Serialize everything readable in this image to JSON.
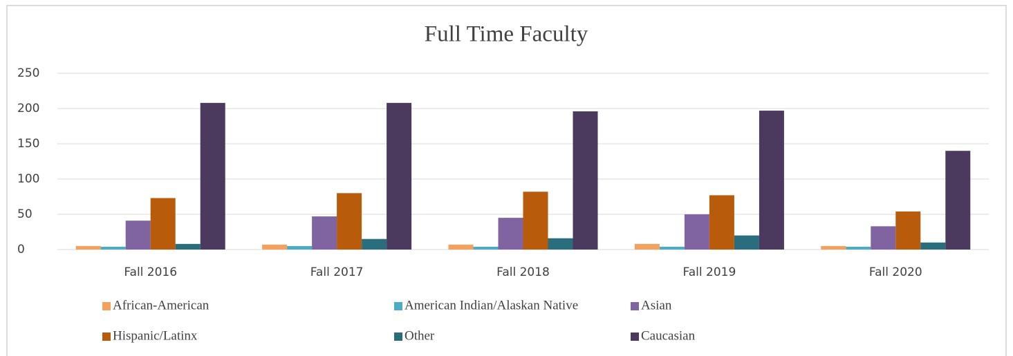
{
  "chart_data": {
    "type": "bar",
    "title": "Full Time Faculty",
    "categories": [
      "Fall 2016",
      "Fall 2017",
      "Fall 2018",
      "Fall 2019",
      "Fall 2020"
    ],
    "series": [
      {
        "name": "African-American",
        "color": "#f4a15d",
        "values": [
          5,
          7,
          7,
          8,
          5
        ]
      },
      {
        "name": "American Indian/Alaskan Native",
        "color": "#4bacc6",
        "values": [
          4,
          5,
          4,
          4,
          4
        ]
      },
      {
        "name": "Asian",
        "color": "#8064a2",
        "values": [
          41,
          47,
          45,
          50,
          33
        ]
      },
      {
        "name": "Hispanic/Latinx",
        "color": "#b85b0a",
        "values": [
          73,
          80,
          82,
          77,
          54
        ]
      },
      {
        "name": "Other",
        "color": "#2a6d7c",
        "values": [
          8,
          15,
          16,
          20,
          10
        ]
      },
      {
        "name": "Caucasian",
        "color": "#4b3a5e",
        "values": [
          208,
          208,
          196,
          197,
          140
        ]
      }
    ],
    "ylim": [
      0,
      250
    ],
    "yticks": [
      0,
      50,
      100,
      150,
      200,
      250
    ],
    "grid": true,
    "legend": "bottom"
  }
}
